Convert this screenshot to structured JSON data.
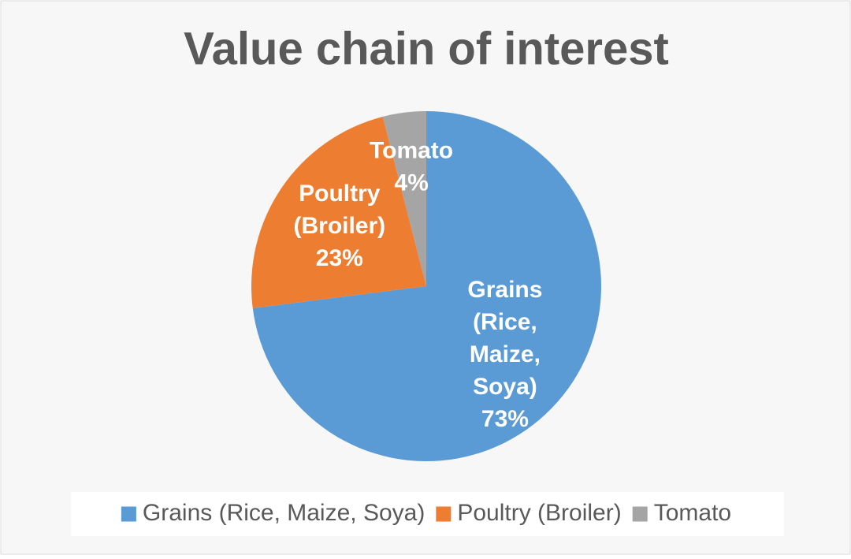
{
  "chart_data": {
    "type": "pie",
    "title": "Value chain of interest",
    "categories": [
      "Grains (Rice, Maize, Soya)",
      "Poultry (Broiler)",
      "Tomato"
    ],
    "values": [
      73,
      23,
      4
    ],
    "value_labels": [
      "73%",
      "23%",
      "4%"
    ],
    "colors": [
      "#5b9bd5",
      "#ed7d31",
      "#a5a5a5"
    ],
    "legend": "bottom"
  }
}
